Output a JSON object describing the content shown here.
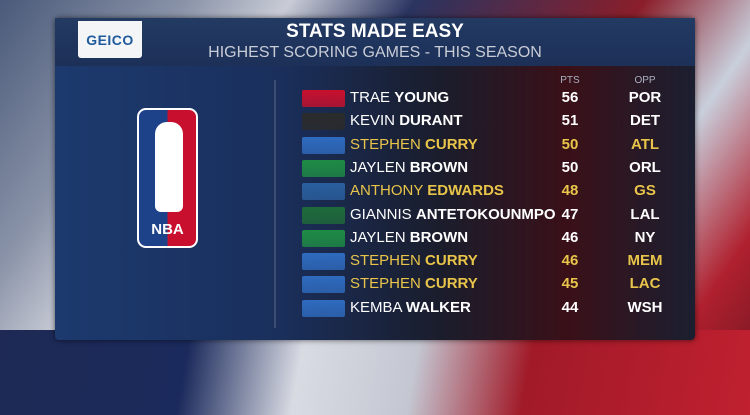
{
  "sponsor": "GEICO",
  "header": {
    "title": "STATS MADE EASY",
    "subtitle": "HIGHEST SCORING GAMES - THIS SEASON"
  },
  "league_logo": "NBA",
  "columns": {
    "pts": "PTS",
    "opp": "OPP"
  },
  "highlight_color": "#e8c54a",
  "rows": [
    {
      "team": "hawks",
      "color": "#c8102e",
      "first": "TRAE",
      "last": "YOUNG",
      "pts": "56",
      "opp": "POR",
      "highlight": false
    },
    {
      "team": "nets",
      "color": "#2b2b2b",
      "first": "KEVIN",
      "last": "DURANT",
      "pts": "51",
      "opp": "DET",
      "highlight": false
    },
    {
      "team": "warriors",
      "color": "#2f6bbf",
      "first": "STEPHEN",
      "last": "CURRY",
      "pts": "50",
      "opp": "ATL",
      "highlight": true
    },
    {
      "team": "celtics",
      "color": "#1e8c45",
      "first": "JAYLEN",
      "last": "BROWN",
      "pts": "50",
      "opp": "ORL",
      "highlight": false
    },
    {
      "team": "timberwolves",
      "color": "#2a5f9e",
      "first": "ANTHONY",
      "last": "EDWARDS",
      "pts": "48",
      "opp": "GS",
      "highlight": true
    },
    {
      "team": "bucks",
      "color": "#1f6b3a",
      "first": "GIANNIS",
      "last": "ANTETOKOUNMPO",
      "pts": "47",
      "opp": "LAL",
      "highlight": false
    },
    {
      "team": "celtics",
      "color": "#1e8c45",
      "first": "JAYLEN",
      "last": "BROWN",
      "pts": "46",
      "opp": "NY",
      "highlight": false
    },
    {
      "team": "warriors",
      "color": "#2f6bbf",
      "first": "STEPHEN",
      "last": "CURRY",
      "pts": "46",
      "opp": "MEM",
      "highlight": true
    },
    {
      "team": "warriors",
      "color": "#2f6bbf",
      "first": "STEPHEN",
      "last": "CURRY",
      "pts": "45",
      "opp": "LAC",
      "highlight": true
    },
    {
      "team": "knicks",
      "color": "#2f6bbf",
      "first": "KEMBA",
      "last": "WALKER",
      "pts": "44",
      "opp": "WSH",
      "highlight": false
    }
  ]
}
